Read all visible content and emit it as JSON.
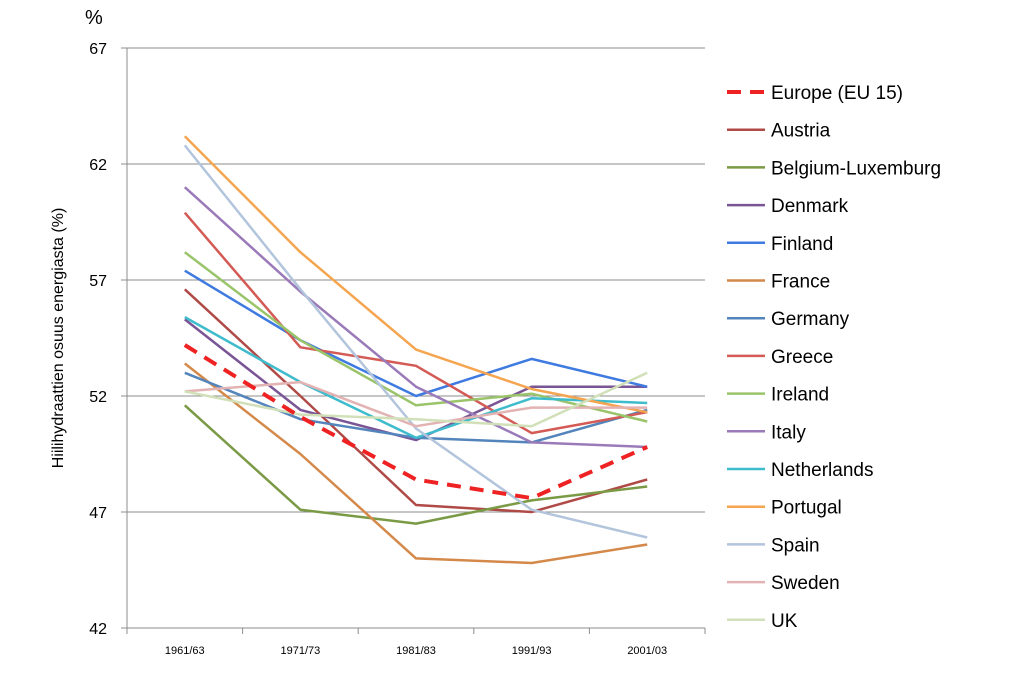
{
  "chart_data": {
    "type": "line",
    "unit_label": "%",
    "ylabel": "Hiilihydraattien osuus energiasta (%)",
    "xlabel": "",
    "categories": [
      "1961/63",
      "1971/73",
      "1981/83",
      "1991/93",
      "2001/03"
    ],
    "ylim": [
      42,
      67
    ],
    "yticks": [
      42,
      47,
      52,
      57,
      62,
      67
    ],
    "yticks_labels": [
      "42",
      "47",
      "52",
      "57",
      "62",
      "67"
    ],
    "grid": "horizontal",
    "legend_position": "right",
    "series": [
      {
        "name": "Europe (EU 15)",
        "color": "#ee2222",
        "dashed": true,
        "values": [
          54.2,
          51.1,
          48.4,
          47.6,
          49.8
        ]
      },
      {
        "name": "Austria",
        "color": "#b04a47",
        "dashed": false,
        "values": [
          56.6,
          52.0,
          47.3,
          47.0,
          48.4
        ]
      },
      {
        "name": "Belgium-Luxemburg",
        "color": "#7a9a45",
        "dashed": false,
        "values": [
          51.6,
          47.1,
          46.5,
          47.5,
          48.1
        ]
      },
      {
        "name": "Denmark",
        "color": "#7a5596",
        "dashed": false,
        "values": [
          55.3,
          51.4,
          50.1,
          52.4,
          52.4
        ]
      },
      {
        "name": "Finland",
        "color": "#3f7ae0",
        "dashed": false,
        "values": [
          57.4,
          54.4,
          52.0,
          53.6,
          52.4
        ]
      },
      {
        "name": "France",
        "color": "#d4894a",
        "dashed": false,
        "values": [
          53.4,
          49.5,
          45.0,
          44.8,
          45.6
        ]
      },
      {
        "name": "Germany",
        "color": "#5384bb",
        "dashed": false,
        "values": [
          53.0,
          51.0,
          50.2,
          50.0,
          51.4
        ]
      },
      {
        "name": "Greece",
        "color": "#d35a55",
        "dashed": false,
        "values": [
          59.9,
          54.1,
          53.3,
          50.4,
          51.3
        ]
      },
      {
        "name": "Ireland",
        "color": "#9ac46a",
        "dashed": false,
        "values": [
          58.2,
          54.4,
          51.6,
          52.1,
          50.9
        ]
      },
      {
        "name": "Italy",
        "color": "#9a7ab8",
        "dashed": false,
        "values": [
          61.0,
          56.5,
          52.4,
          50.0,
          49.8
        ]
      },
      {
        "name": "Netherlands",
        "color": "#3fbccc",
        "dashed": false,
        "values": [
          55.4,
          52.6,
          50.2,
          51.9,
          51.7
        ]
      },
      {
        "name": "Portugal",
        "color": "#f5a550",
        "dashed": false,
        "values": [
          63.2,
          58.2,
          54.0,
          52.3,
          51.3
        ]
      },
      {
        "name": "Spain",
        "color": "#b3c5dc",
        "dashed": false,
        "values": [
          62.8,
          56.6,
          50.6,
          47.1,
          45.9
        ]
      },
      {
        "name": "Sweden",
        "color": "#e3b2b2",
        "dashed": false,
        "values": [
          52.2,
          52.6,
          50.7,
          51.5,
          51.5
        ]
      },
      {
        "name": "UK",
        "color": "#d1e0b8",
        "dashed": false,
        "values": [
          52.2,
          51.2,
          51.0,
          50.7,
          53.0
        ]
      }
    ]
  }
}
